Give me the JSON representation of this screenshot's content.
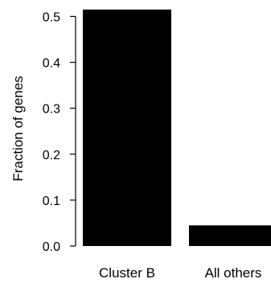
{
  "chart_data": {
    "type": "bar",
    "categories": [
      "Cluster B",
      "All others"
    ],
    "values": [
      0.515,
      0.045
    ],
    "title": "",
    "xlabel": "",
    "ylabel": "Fraction of genes",
    "ylim": [
      0,
      0.52
    ],
    "yticks": [
      "0.0",
      "0.1",
      "0.2",
      "0.3",
      "0.4",
      "0.5"
    ],
    "grid": false,
    "bar_color": "#000000"
  }
}
